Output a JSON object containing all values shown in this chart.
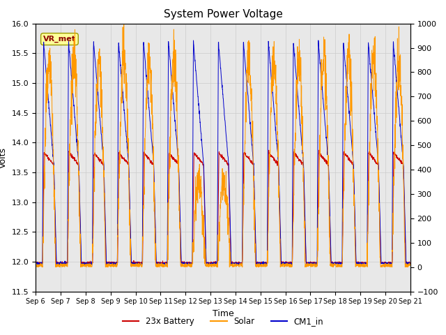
{
  "title": "System Power Voltage",
  "xlabel": "Time",
  "ylabel_left": "Volts",
  "ylabel_right": "",
  "ylim_left": [
    11.5,
    16.0
  ],
  "ylim_right": [
    -100,
    1000
  ],
  "yticks_left": [
    11.5,
    12.0,
    12.5,
    13.0,
    13.5,
    14.0,
    14.5,
    15.0,
    15.5,
    16.0
  ],
  "yticks_right": [
    -100,
    0,
    100,
    200,
    300,
    400,
    500,
    600,
    700,
    800,
    900,
    1000
  ],
  "xtick_labels": [
    "Sep 6",
    "Sep 7",
    "Sep 8",
    "Sep 9",
    "Sep 10",
    "Sep 11",
    "Sep 12",
    "Sep 13",
    "Sep 14",
    "Sep 15",
    "Sep 16",
    "Sep 17",
    "Sep 18",
    "Sep 19",
    "Sep 20",
    "Sep 21"
  ],
  "legend_entries": [
    "23x Battery",
    "Solar",
    "CM1_in"
  ],
  "legend_colors": [
    "#cc0000",
    "#ff9900",
    "#0000cc"
  ],
  "annotation_text": "VR_met",
  "annotation_bg": "#ffff99",
  "annotation_border": "#999900",
  "bg_color": "#e8e8e8",
  "grid_color": "#cccccc",
  "title_fontsize": 11,
  "n_days": 15,
  "pts_per_day": 144
}
